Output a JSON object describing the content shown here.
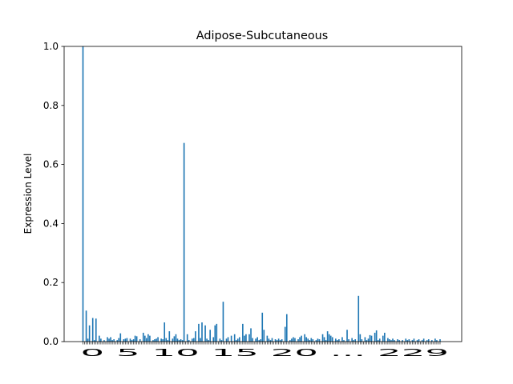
{
  "chart_data": {
    "type": "bar",
    "title": "Adipose-Subcutaneous",
    "xlabel": "",
    "ylabel": "Expression Level",
    "ylim": [
      0,
      1.0
    ],
    "yticks": [
      "0.0",
      "0.2",
      "0.4",
      "0.6",
      "0.8",
      "1.0"
    ],
    "xtick_text": "0 5 10 15 20 ... 229",
    "grid": false,
    "bar_color": "#1f77b4",
    "values": [
      1.0,
      0.0,
      0.105,
      0.01,
      0.055,
      0.0,
      0.08,
      0.005,
      0.078,
      0.0,
      0.02,
      0.01,
      0.0,
      0.005,
      0.0,
      0.015,
      0.01,
      0.015,
      0.005,
      0.008,
      0.0,
      0.005,
      0.012,
      0.028,
      0.0,
      0.008,
      0.01,
      0.012,
      0.0,
      0.01,
      0.005,
      0.008,
      0.02,
      0.018,
      0.0,
      0.008,
      0.0,
      0.03,
      0.02,
      0.012,
      0.025,
      0.02,
      0.0,
      0.005,
      0.008,
      0.01,
      0.015,
      0.0,
      0.01,
      0.008,
      0.065,
      0.012,
      0.005,
      0.035,
      0.0,
      0.01,
      0.018,
      0.025,
      0.01,
      0.005,
      0.008,
      0.005,
      0.673,
      0.0,
      0.025,
      0.005,
      0.0,
      0.01,
      0.012,
      0.035,
      0.0,
      0.06,
      0.012,
      0.065,
      0.0,
      0.055,
      0.01,
      0.005,
      0.04,
      0.0,
      0.015,
      0.055,
      0.06,
      0.0,
      0.01,
      0.005,
      0.135,
      0.0,
      0.01,
      0.015,
      0.0,
      0.02,
      0.0,
      0.025,
      0.005,
      0.01,
      0.015,
      0.0,
      0.06,
      0.02,
      0.025,
      0.0,
      0.025,
      0.045,
      0.012,
      0.0,
      0.01,
      0.015,
      0.005,
      0.008,
      0.098,
      0.04,
      0.0,
      0.02,
      0.01,
      0.005,
      0.012,
      0.0,
      0.008,
      0.005,
      0.01,
      0.005,
      0.008,
      0.0,
      0.05,
      0.093,
      0.0,
      0.005,
      0.01,
      0.015,
      0.012,
      0.0,
      0.008,
      0.015,
      0.02,
      0.0,
      0.025,
      0.015,
      0.01,
      0.005,
      0.012,
      0.008,
      0.0,
      0.005,
      0.01,
      0.008,
      0.0,
      0.025,
      0.015,
      0.005,
      0.035,
      0.025,
      0.02,
      0.015,
      0.0,
      0.01,
      0.005,
      0.008,
      0.0,
      0.015,
      0.005,
      0.0,
      0.04,
      0.008,
      0.0,
      0.012,
      0.005,
      0.008,
      0.0,
      0.155,
      0.025,
      0.008,
      0.0,
      0.015,
      0.005,
      0.01,
      0.022,
      0.02,
      0.0,
      0.03,
      0.038,
      0.005,
      0.01,
      0.0,
      0.02,
      0.03,
      0.0,
      0.012,
      0.008,
      0.005,
      0.01,
      0.005,
      0.0,
      0.008,
      0.005,
      0.0,
      0.005,
      0.0,
      0.01,
      0.005,
      0.008,
      0.0,
      0.005,
      0.01,
      0.0,
      0.005,
      0.008,
      0.0,
      0.005,
      0.01,
      0.0,
      0.005,
      0.008,
      0.0,
      0.005,
      0.0,
      0.01,
      0.005,
      0.0,
      0.008
    ]
  }
}
